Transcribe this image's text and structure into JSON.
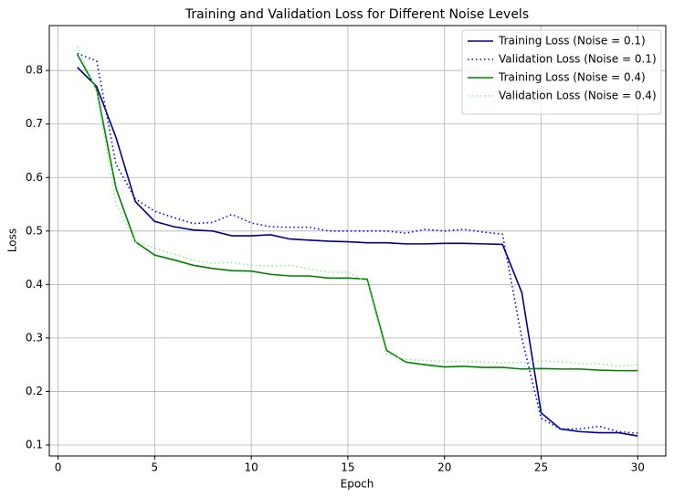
{
  "chart_data": {
    "type": "line",
    "title": "Training and Validation Loss for Different Noise Levels",
    "xlabel": "Epoch",
    "ylabel": "Loss",
    "x": [
      1,
      2,
      3,
      4,
      5,
      6,
      7,
      8,
      9,
      10,
      11,
      12,
      13,
      14,
      15,
      16,
      17,
      18,
      19,
      20,
      21,
      22,
      23,
      24,
      25,
      26,
      27,
      28,
      29,
      30
    ],
    "series": [
      {
        "name": "Training Loss (Noise = 0.1)",
        "color": "#00008b",
        "style": "solid",
        "values": [
          0.806,
          0.77,
          0.675,
          0.555,
          0.518,
          0.508,
          0.502,
          0.5,
          0.491,
          0.491,
          0.493,
          0.485,
          0.483,
          0.481,
          0.48,
          0.478,
          0.478,
          0.476,
          0.476,
          0.477,
          0.477,
          0.476,
          0.475,
          0.385,
          0.16,
          0.13,
          0.125,
          0.123,
          0.123,
          0.117
        ]
      },
      {
        "name": "Validation Loss (Noise = 0.1)",
        "color": "#0000ff",
        "style": "dotted",
        "values": [
          0.832,
          0.818,
          0.625,
          0.56,
          0.537,
          0.525,
          0.514,
          0.516,
          0.531,
          0.515,
          0.508,
          0.507,
          0.507,
          0.5,
          0.5,
          0.5,
          0.5,
          0.496,
          0.503,
          0.5,
          0.503,
          0.498,
          0.494,
          0.3,
          0.15,
          0.13,
          0.13,
          0.135,
          0.125,
          0.122
        ]
      },
      {
        "name": "Training Loss (Noise = 0.4)",
        "color": "#008000",
        "style": "solid",
        "values": [
          0.83,
          0.765,
          0.58,
          0.48,
          0.455,
          0.446,
          0.436,
          0.43,
          0.426,
          0.425,
          0.419,
          0.416,
          0.416,
          0.412,
          0.412,
          0.41,
          0.277,
          0.255,
          0.25,
          0.246,
          0.247,
          0.245,
          0.245,
          0.242,
          0.243,
          0.242,
          0.242,
          0.24,
          0.239,
          0.239
        ]
      },
      {
        "name": "Validation Loss (Noise = 0.4)",
        "color": "#90ee90",
        "style": "dotted",
        "values": [
          0.845,
          0.76,
          0.55,
          0.48,
          0.468,
          0.457,
          0.445,
          0.44,
          0.441,
          0.436,
          0.434,
          0.436,
          0.429,
          0.423,
          0.423,
          0.405,
          0.27,
          0.26,
          0.258,
          0.256,
          0.256,
          0.255,
          0.254,
          0.254,
          0.257,
          0.256,
          0.252,
          0.252,
          0.247,
          0.25
        ]
      }
    ],
    "xlim": [
      -0.45,
      31.45
    ],
    "xticks": [
      0,
      5,
      10,
      15,
      20,
      25,
      30
    ],
    "ylim": [
      0.0795,
      0.884
    ],
    "yticks": [
      0.1,
      0.2,
      0.3,
      0.4,
      0.5,
      0.6,
      0.7,
      0.8
    ],
    "grid": true,
    "legend": "upper-right"
  }
}
